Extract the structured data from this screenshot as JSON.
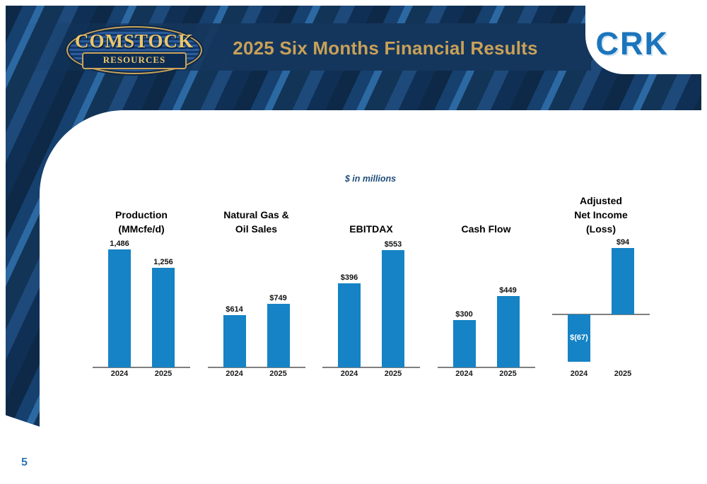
{
  "header": {
    "title": "2025 Six Months Financial Results",
    "crk": "CRK"
  },
  "logo": {
    "line1": "COMSTOCK",
    "line2": "RESOURCES"
  },
  "note": "$ in millions",
  "page_number": "5",
  "colors": {
    "bar": "#1583c5",
    "gold": "#c9a158",
    "navy": "#15365c",
    "crk": "#1c75bc",
    "note": "#1f4e79",
    "page": "#2e74b5"
  },
  "chart_data": [
    {
      "type": "bar",
      "title": "Production (MMcfe/d)",
      "title_lines": [
        "Production",
        "(MMcfe/d)"
      ],
      "categories": [
        "2024",
        "2025"
      ],
      "values": [
        1486,
        1256
      ],
      "value_labels": [
        "1,486",
        "1,256"
      ],
      "ylim": [
        0,
        1600
      ]
    },
    {
      "type": "bar",
      "title": "Natural Gas & Oil Sales",
      "title_lines": [
        "Natural Gas &",
        "Oil Sales"
      ],
      "categories": [
        "2024",
        "2025"
      ],
      "values": [
        614,
        749
      ],
      "value_labels": [
        "$614",
        "$749"
      ],
      "ylim": [
        0,
        1500
      ]
    },
    {
      "type": "bar",
      "title": "EBITDAX",
      "title_lines": [
        "EBITDAX"
      ],
      "categories": [
        "2024",
        "2025"
      ],
      "values": [
        396,
        553
      ],
      "value_labels": [
        "$396",
        "$553"
      ],
      "ylim": [
        0,
        600
      ]
    },
    {
      "type": "bar",
      "title": "Cash Flow",
      "title_lines": [
        "Cash Flow"
      ],
      "categories": [
        "2024",
        "2025"
      ],
      "values": [
        300,
        449
      ],
      "value_labels": [
        "$300",
        "$449"
      ],
      "ylim": [
        0,
        800
      ]
    },
    {
      "type": "bar",
      "title": "Adjusted Net Income (Loss)",
      "title_lines": [
        "Adjusted",
        "Net Income",
        "(Loss)"
      ],
      "categories": [
        "2024",
        "2025"
      ],
      "values": [
        -67,
        94
      ],
      "value_labels": [
        "$(67)",
        "$94"
      ],
      "ylim": [
        -75,
        105
      ]
    }
  ]
}
